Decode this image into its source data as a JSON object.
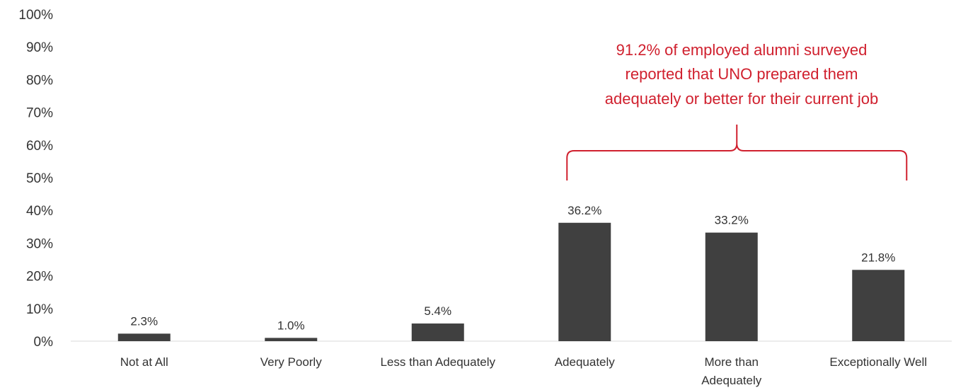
{
  "colors": {
    "bar": "#404040",
    "annotation": "#d0202e",
    "axis": "#d9d9d9",
    "text": "#333333"
  },
  "chart_data": {
    "type": "bar",
    "categories": [
      "Not at All",
      "Very Poorly",
      "Less than Adequately",
      "Adequately",
      "More than Adequately",
      "Exceptionally Well"
    ],
    "category_lines": [
      [
        "Not at All"
      ],
      [
        "Very Poorly"
      ],
      [
        "Less than Adequately"
      ],
      [
        "Adequately"
      ],
      [
        "More than",
        "Adequately"
      ],
      [
        "Exceptionally Well"
      ]
    ],
    "values": [
      2.3,
      1.0,
      5.4,
      36.2,
      33.2,
      21.8
    ],
    "data_labels": [
      "2.3%",
      "1.0%",
      "5.4%",
      "36.2%",
      "33.2%",
      "21.8%"
    ],
    "y_ticks": [
      "0%",
      "10%",
      "20%",
      "30%",
      "40%",
      "50%",
      "60%",
      "70%",
      "80%",
      "90%",
      "100%"
    ],
    "ylim": [
      0,
      100
    ],
    "grid": false,
    "title": "",
    "xlabel": "",
    "ylabel": "",
    "annotation": {
      "lines": [
        "91.2% of employed alumni surveyed",
        "reported that UNO prepared them",
        "adequately or better for their current job"
      ],
      "brace_span_categories": [
        "Adequately",
        "Exceptionally Well"
      ]
    }
  }
}
